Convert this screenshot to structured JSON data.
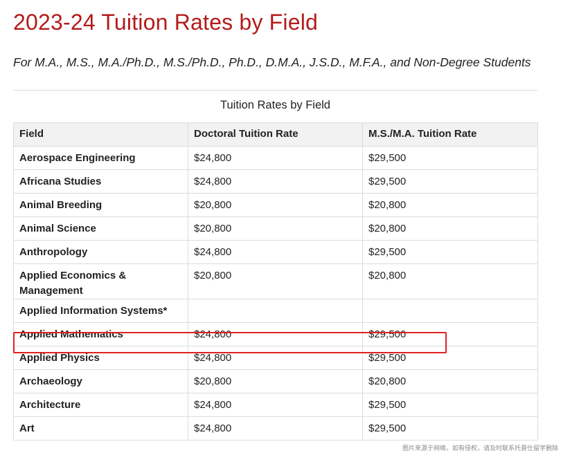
{
  "page": {
    "title": "2023-24 Tuition Rates by Field",
    "subtitle": "For M.A., M.S., M.A./Ph.D., M.S./Ph.D., Ph.D., D.M.A., J.S.D., M.F.A., and Non-Degree Students",
    "watermark": "图片来源于网络，如有侵权，请及时联系托普仕留学删除",
    "highlight_color": "#e02020",
    "title_color": "#b31b1b"
  },
  "table": {
    "caption": "Tuition Rates by Field",
    "headers": [
      "Field",
      "Doctoral Tuition Rate",
      "M.S./M.A. Tuition Rate"
    ],
    "rows": [
      {
        "field": "Aerospace Engineering",
        "doctoral": "$24,800",
        "masters": "$29,500"
      },
      {
        "field": "Africana Studies",
        "doctoral": "$24,800",
        "masters": "$29,500"
      },
      {
        "field": "Animal Breeding",
        "doctoral": "$20,800",
        "masters": "$20,800"
      },
      {
        "field": "Animal Science",
        "doctoral": "$20,800",
        "masters": "$20,800"
      },
      {
        "field": "Anthropology",
        "doctoral": "$24,800",
        "masters": "$29,500"
      },
      {
        "field": "Applied Economics & Management",
        "doctoral": "$20,800",
        "masters": "$20,800"
      },
      {
        "field": "Applied Information Systems*",
        "doctoral": "",
        "masters": ""
      },
      {
        "field": "Applied Mathematics",
        "doctoral": "$24,800",
        "masters": "$29,500",
        "highlighted": true
      },
      {
        "field": "Applied Physics",
        "doctoral": "$24,800",
        "masters": "$29,500"
      },
      {
        "field": "Archaeology",
        "doctoral": "$20,800",
        "masters": "$20,800"
      },
      {
        "field": "Architecture",
        "doctoral": "$24,800",
        "masters": "$29,500"
      },
      {
        "field": "Art",
        "doctoral": "$24,800",
        "masters": "$29,500"
      }
    ]
  }
}
